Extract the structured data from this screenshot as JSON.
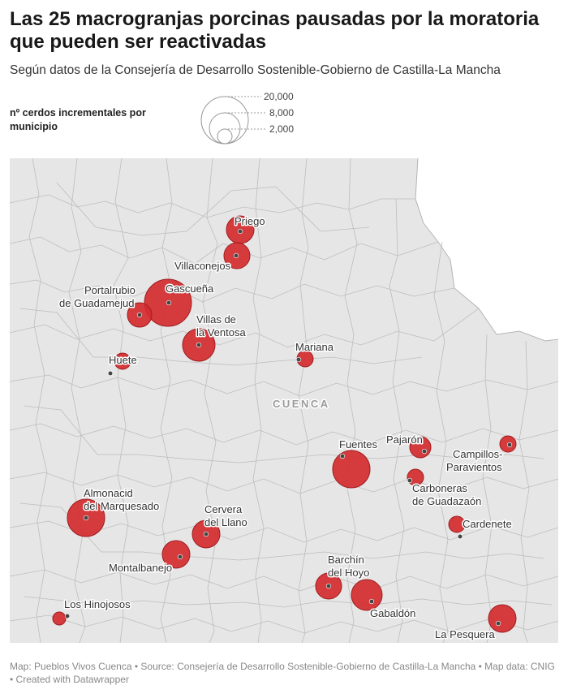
{
  "title": "Las 25 macrogranjas porcinas pausadas por la moratoria que pueden ser reactivadas",
  "subtitle": "Según datos de la Consejería de Desarrollo Sostenible-Gobierno de Castilla-La Mancha",
  "legend": {
    "title": "nº cerdos incrementales por municipio",
    "values": [
      "20,000",
      "8,000",
      "2,000"
    ]
  },
  "province_label": "CUENCA",
  "colors": {
    "bubble": "#d42c2f",
    "bubble_stroke": "#9f1c1f",
    "land": "#e6e6e6",
    "borders": "#bdbdbd"
  },
  "places": [
    {
      "label": "Priego"
    },
    {
      "label": "Villaconejos"
    },
    {
      "label": "Portalrubio"
    },
    {
      "label": "de Guadamejud"
    },
    {
      "label": "Gascueña"
    },
    {
      "label": "Villas de"
    },
    {
      "label": "la Ventosa"
    },
    {
      "label": "Huete"
    },
    {
      "label": "Mariana"
    },
    {
      "label": "Fuentes"
    },
    {
      "label": "Pajarón"
    },
    {
      "label": "Campillos-"
    },
    {
      "label": "Paravientos"
    },
    {
      "label": "Carboneras"
    },
    {
      "label": "de Guadazaón"
    },
    {
      "label": "Cardenete"
    },
    {
      "label": "Almonacid"
    },
    {
      "label": "del Marquesado"
    },
    {
      "label": "Cervera"
    },
    {
      "label": "del Llano"
    },
    {
      "label": "Montalbanejo"
    },
    {
      "label": "Barchín"
    },
    {
      "label": "del Hoyo"
    },
    {
      "label": "Gabaldón"
    },
    {
      "label": "Los Hinojosos"
    },
    {
      "label": "La Pesquera"
    }
  ],
  "footer": "Map: Pueblos Vivos Cuenca • Source: Consejería de Desarrollo Sostenible-Gobierno de Castilla-La Mancha • Map data: CNIG  • Created with Datawrapper"
}
